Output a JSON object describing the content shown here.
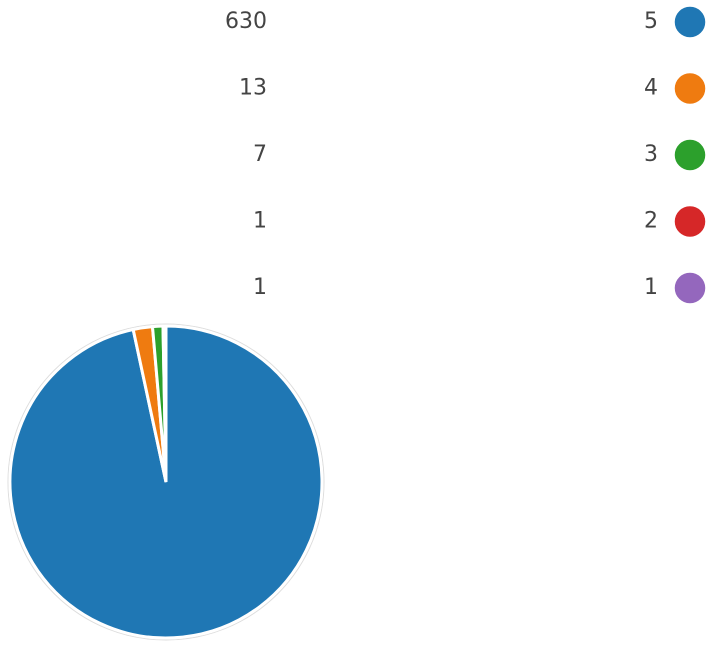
{
  "chart_data": {
    "type": "pie",
    "categories": [
      "5",
      "4",
      "3",
      "2",
      "1"
    ],
    "values": [
      630,
      13,
      7,
      1,
      1
    ],
    "colors": [
      "#1f77b4",
      "#ef7b10",
      "#2ca02c",
      "#d62728",
      "#9467bd"
    ]
  }
}
